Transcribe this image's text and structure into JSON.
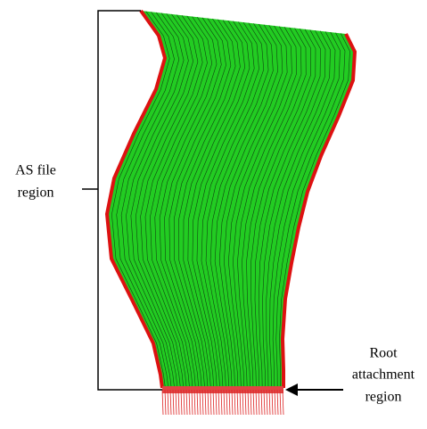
{
  "labels": {
    "as_file_region": [
      "AS file",
      "region"
    ],
    "root_attachment_region": [
      "Root",
      "attachment",
      "region"
    ]
  }
}
